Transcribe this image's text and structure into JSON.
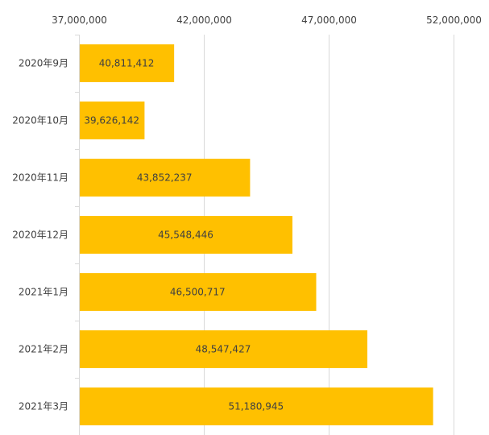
{
  "chart_data": {
    "type": "bar",
    "orientation": "horizontal",
    "categories": [
      "2020年9月",
      "2020年10月",
      "2020年11月",
      "2020年12月",
      "2021年1月",
      "2021年2月",
      "2021年3月"
    ],
    "values": [
      40811412,
      39626142,
      43852237,
      45548446,
      46500717,
      48547427,
      51180945
    ],
    "data_labels": [
      "40,811,412",
      "39,626,142",
      "43,852,237",
      "45,548,446",
      "46,500,717",
      "48,547,427",
      "51,180,945"
    ],
    "x_axis": {
      "position": "top",
      "ticks": [
        37000000,
        42000000,
        47000000,
        52000000
      ],
      "tick_labels": [
        "37,000,000",
        "42,000,000",
        "47,000,000",
        "52,000,000"
      ]
    },
    "xlim": [
      37000000,
      52000000
    ],
    "grid": true,
    "legend": "none",
    "bar_color": "#FFC000",
    "grid_color": "#D9D9D9",
    "text_color": "#404040"
  }
}
